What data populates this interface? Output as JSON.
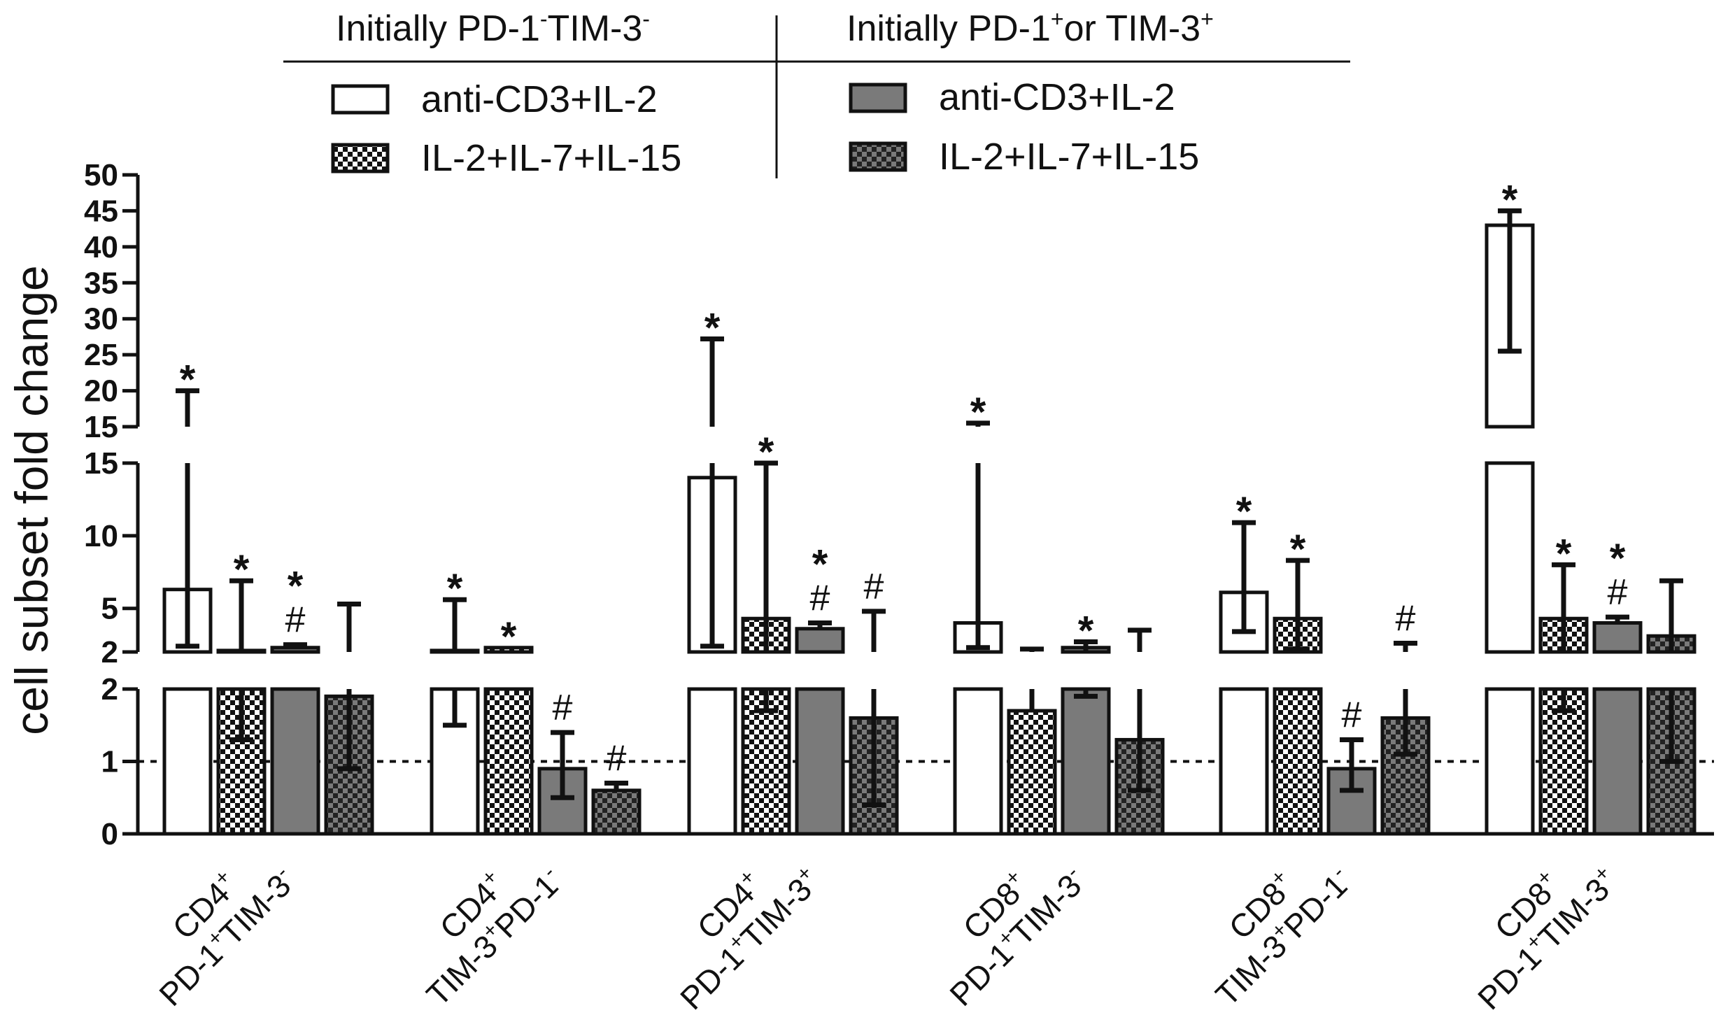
{
  "chart_data": {
    "type": "bar",
    "ylabel": "cell subset fold change",
    "y_axis_segments": [
      {
        "range": [
          0,
          2
        ],
        "ticks": [
          "0",
          "1",
          "2"
        ]
      },
      {
        "range": [
          2,
          15
        ],
        "ticks": [
          "2",
          "5",
          "10",
          "15"
        ]
      },
      {
        "range": [
          15,
          50
        ],
        "ticks": [
          "15",
          "20",
          "25",
          "30",
          "35",
          "40",
          "45",
          "50"
        ]
      }
    ],
    "reference_line": 1,
    "legend": {
      "group_headers": [
        {
          "prefix": "Initially PD-1",
          "sup1": "-",
          "mid": "TIM-3",
          "sup2": "-",
          "suffix": ""
        },
        {
          "prefix": "Initially PD-1",
          "sup1": "+",
          "mid": "or TIM-3",
          "sup2": "+",
          "suffix": ""
        }
      ],
      "series_labels": [
        "anti-CD3+IL-2",
        "IL-2+IL-7+IL-15",
        "anti-CD3+IL-2",
        "IL-2+IL-7+IL-15"
      ]
    },
    "categories": [
      {
        "line1": "CD4",
        "line1_sup": "+",
        "line2_a": "PD-1",
        "sup_a": "+",
        "line2_b": "TIM-3",
        "sup_b": "-"
      },
      {
        "line1": "CD4",
        "line1_sup": "+",
        "line2_a": "TIM-3",
        "sup_a": "+",
        "line2_b": "PD-1",
        "sup_b": "-"
      },
      {
        "line1": "CD4",
        "line1_sup": "+",
        "line2_a": "PD-1",
        "sup_a": "+",
        "line2_b": "TIM-3",
        "sup_b": "+"
      },
      {
        "line1": "CD8",
        "line1_sup": "+",
        "line2_a": "PD-1",
        "sup_a": "+",
        "line2_b": "TIM-3",
        "sup_b": "-"
      },
      {
        "line1": "CD8",
        "line1_sup": "+",
        "line2_a": "TIM-3",
        "sup_a": "+",
        "line2_b": "PD-1",
        "sup_b": "-"
      },
      {
        "line1": "CD8",
        "line1_sup": "+",
        "line2_a": "PD-1",
        "sup_a": "+",
        "line2_b": "TIM-3",
        "sup_b": "+"
      }
    ],
    "series": [
      {
        "name": "Initially PD-1-TIM-3- anti-CD3+IL-2",
        "values": [
          6.3,
          2.1,
          14.0,
          4.0,
          6.1,
          43.0
        ],
        "error_low": [
          2.4,
          1.5,
          2.4,
          2.3,
          3.4,
          25.5
        ],
        "error_high": [
          20.0,
          5.6,
          27.2,
          15.5,
          10.9,
          45.0
        ],
        "marks": [
          "*",
          "*",
          "*",
          "*",
          "*",
          "*"
        ]
      },
      {
        "name": "Initially PD-1-TIM-3- IL-2+IL-7+IL-15",
        "values": [
          2.1,
          2.3,
          4.3,
          1.7,
          4.3,
          4.3
        ],
        "error_low": [
          1.3,
          null,
          1.7,
          null,
          2.2,
          1.7
        ],
        "error_high": [
          6.9,
          null,
          15.0,
          2.2,
          8.3,
          8.0
        ],
        "marks": [
          "*",
          "*",
          "*",
          "",
          "*",
          "*"
        ]
      },
      {
        "name": "Initially PD-1+ or TIM-3+ anti-CD3+IL-2",
        "values": [
          2.3,
          0.9,
          3.6,
          2.3,
          0.9,
          4.0
        ],
        "error_low": [
          null,
          0.5,
          null,
          1.9,
          0.6,
          null
        ],
        "error_high": [
          2.5,
          1.4,
          4.0,
          2.7,
          1.3,
          4.4
        ],
        "marks": [
          "*#",
          "#",
          "*#",
          "*",
          "#",
          "*#"
        ]
      },
      {
        "name": "Initially PD-1+ or TIM-3+ IL-2+IL-7+IL-15",
        "values": [
          1.9,
          0.6,
          1.6,
          1.3,
          1.6,
          3.1
        ],
        "error_low": [
          0.9,
          null,
          0.4,
          0.6,
          1.1,
          1.0
        ],
        "error_high": [
          5.3,
          0.7,
          4.8,
          3.5,
          2.6,
          6.9
        ],
        "marks": [
          "",
          "#",
          "#",
          "",
          "#",
          ""
        ]
      }
    ]
  }
}
